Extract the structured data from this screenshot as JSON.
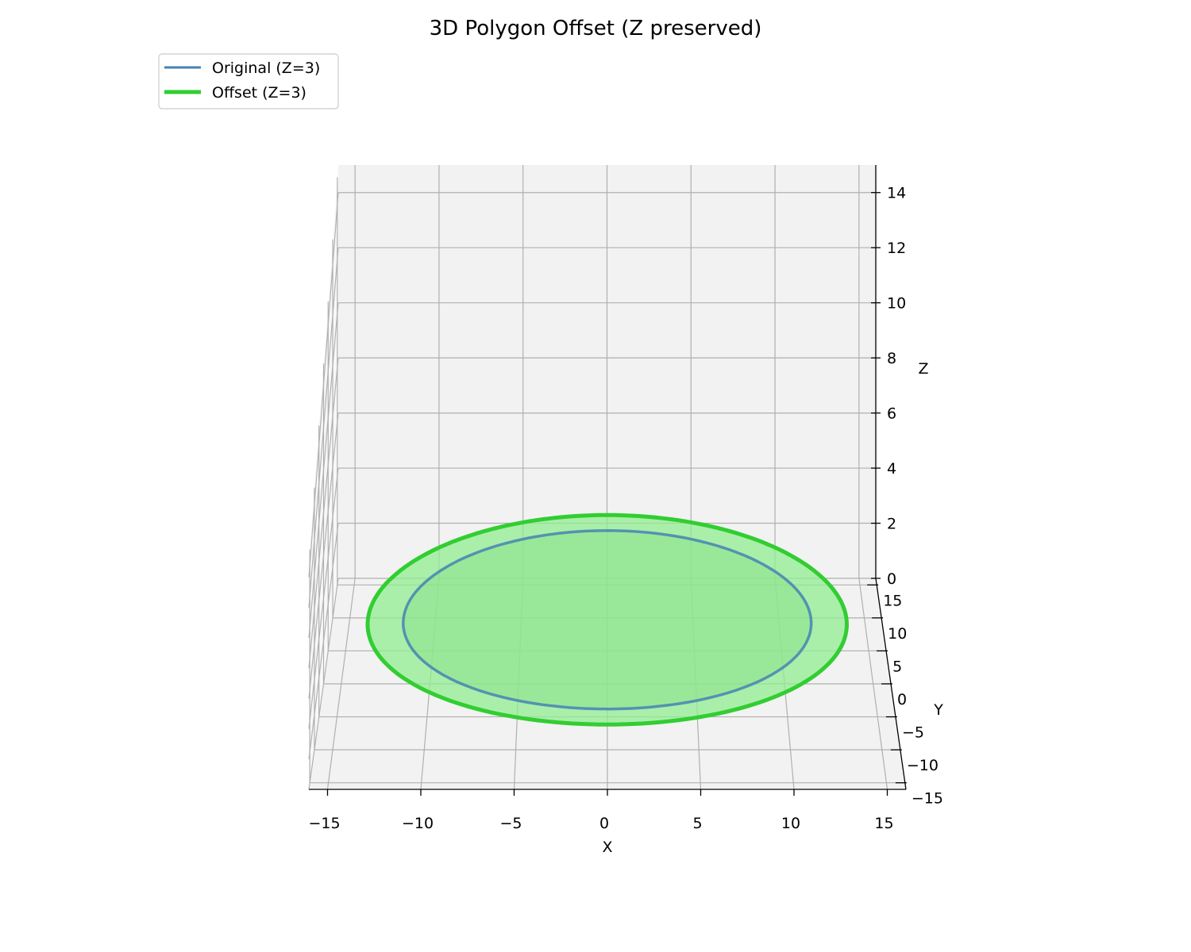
{
  "chart_data": {
    "type": "line",
    "projection": "3d",
    "title": "3D Polygon Offset (Z preserved)",
    "xlabel": "X",
    "ylabel": "Y",
    "zlabel": "Z",
    "xlim": [
      -16,
      16
    ],
    "ylim": [
      -16,
      16
    ],
    "zlim": [
      0,
      15
    ],
    "x_ticks": [
      -15,
      -10,
      -5,
      0,
      5,
      10,
      15
    ],
    "y_ticks": [
      -15,
      -10,
      -5,
      0,
      5,
      10,
      15
    ],
    "z_ticks": [
      0,
      2,
      4,
      6,
      8,
      10,
      12,
      14
    ],
    "x_tick_labels": [
      "−15",
      "−10",
      "−5",
      "0",
      "5",
      "10",
      "15"
    ],
    "y_tick_labels": [
      "−15",
      "−10",
      "−5",
      "0",
      "5",
      "10",
      "15"
    ],
    "z_tick_labels": [
      "0",
      "2",
      "4",
      "6",
      "8",
      "10",
      "12",
      "14"
    ],
    "grid": true,
    "legend_position": "top-left",
    "series": [
      {
        "name": "Original (Z=3)",
        "shape": "circle",
        "center": [
          0,
          0
        ],
        "radius": 11.5,
        "z": 3,
        "color": "#4682b4",
        "fill": "#7fbf7f"
      },
      {
        "name": "Offset (Z=3)",
        "shape": "circle",
        "center": [
          0,
          0
        ],
        "radius": 13.5,
        "z": 3,
        "color": "#32cd32",
        "fill": "#90ee90"
      }
    ]
  }
}
